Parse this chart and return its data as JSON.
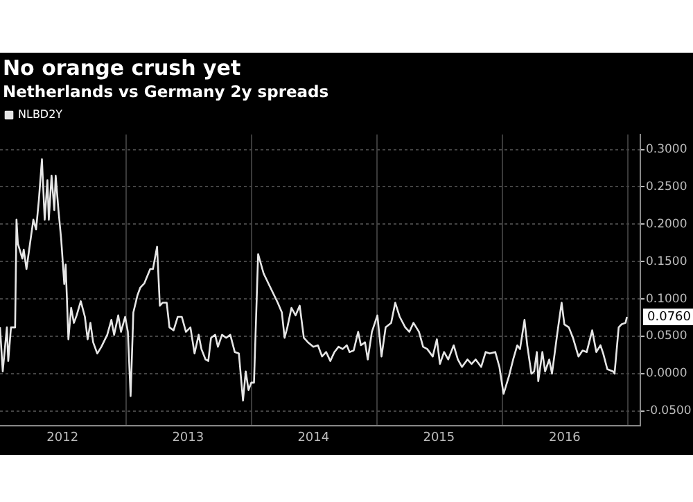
{
  "chart_data": {
    "type": "line",
    "title": "No orange crush yet",
    "subtitle": "Netherlands vs Germany 2y spreads",
    "x": [
      "2012-01-01",
      "2012-01-09",
      "2012-01-21",
      "2012-01-25",
      "2012-02-02",
      "2012-02-14",
      "2012-02-18",
      "2012-02-22",
      "2012-03-06",
      "2012-03-10",
      "2012-03-18",
      "2012-04-07",
      "2012-04-15",
      "2012-04-23",
      "2012-05-02",
      "2012-05-10",
      "2012-05-18",
      "2012-05-22",
      "2012-05-30",
      "2012-06-07",
      "2012-06-11",
      "2012-06-19",
      "2012-06-27",
      "2012-07-06",
      "2012-07-10",
      "2012-07-18",
      "2012-07-26",
      "2012-08-03",
      "2012-08-11",
      "2012-08-23",
      "2012-09-04",
      "2012-09-12",
      "2012-09-20",
      "2012-09-28",
      "2012-10-10",
      "2012-10-22",
      "2012-11-08",
      "2012-11-20",
      "2012-11-28",
      "2012-12-10",
      "2012-12-18",
      "2012-12-30",
      "2013-01-07",
      "2013-01-15",
      "2013-01-23",
      "2013-02-04",
      "2013-02-12",
      "2013-02-24",
      "2013-03-13",
      "2013-03-21",
      "2013-04-02",
      "2013-04-10",
      "2013-04-18",
      "2013-04-30",
      "2013-05-08",
      "2013-05-20",
      "2013-06-01",
      "2013-06-13",
      "2013-06-25",
      "2013-07-08",
      "2013-07-20",
      "2013-08-01",
      "2013-08-09",
      "2013-08-21",
      "2013-08-29",
      "2013-09-06",
      "2013-09-18",
      "2013-09-26",
      "2013-10-08",
      "2013-10-20",
      "2013-11-01",
      "2013-11-14",
      "2013-11-26",
      "2013-12-08",
      "2013-12-16",
      "2013-12-24",
      "2014-01-01",
      "2014-01-09",
      "2014-01-21",
      "2014-02-06",
      "2014-02-26",
      "2014-03-19",
      "2014-03-31",
      "2014-04-08",
      "2014-04-16",
      "2014-04-28",
      "2014-05-10",
      "2014-05-22",
      "2014-06-03",
      "2014-06-15",
      "2014-07-01",
      "2014-07-14",
      "2014-07-26",
      "2014-08-07",
      "2014-08-19",
      "2014-08-31",
      "2014-09-12",
      "2014-09-24",
      "2014-10-06",
      "2014-10-14",
      "2014-10-26",
      "2014-11-08",
      "2014-11-16",
      "2014-11-28",
      "2014-12-06",
      "2014-12-18",
      "2015-01-03",
      "2015-01-15",
      "2015-01-27",
      "2015-02-12",
      "2015-02-24",
      "2015-03-09",
      "2015-03-25",
      "2015-04-06",
      "2015-04-18",
      "2015-05-04",
      "2015-05-16",
      "2015-05-28",
      "2015-06-13",
      "2015-06-25",
      "2015-07-04",
      "2015-07-16",
      "2015-07-28",
      "2015-08-13",
      "2015-08-25",
      "2015-09-06",
      "2015-09-22",
      "2015-10-04",
      "2015-10-16",
      "2015-11-01",
      "2015-11-14",
      "2015-11-26",
      "2015-12-12",
      "2015-12-24",
      "2016-01-05",
      "2016-01-21",
      "2016-02-02",
      "2016-02-14",
      "2016-02-22",
      "2016-03-06",
      "2016-03-14",
      "2016-03-26",
      "2016-04-03",
      "2016-04-11",
      "2016-04-15",
      "2016-04-27",
      "2016-05-05",
      "2016-05-17",
      "2016-05-25",
      "2016-06-10",
      "2016-06-22",
      "2016-06-30",
      "2016-07-13",
      "2016-07-25",
      "2016-08-10",
      "2016-08-22",
      "2016-09-03",
      "2016-09-19",
      "2016-10-01",
      "2016-10-13",
      "2016-10-21",
      "2016-11-02",
      "2016-11-19",
      "2016-11-23",
      "2016-12-05",
      "2016-12-13",
      "2016-12-25",
      "2016-12-29"
    ],
    "series": [
      {
        "name": "NLBD2Y",
        "color": "#e6e6e6",
        "values": [
          0.062,
          0.003,
          0.062,
          0.017,
          0.062,
          0.062,
          0.206,
          0.174,
          0.154,
          0.166,
          0.14,
          0.206,
          0.193,
          0.232,
          0.287,
          0.206,
          0.259,
          0.206,
          0.265,
          0.219,
          0.265,
          0.219,
          0.18,
          0.12,
          0.146,
          0.046,
          0.088,
          0.068,
          0.078,
          0.097,
          0.076,
          0.046,
          0.068,
          0.042,
          0.027,
          0.036,
          0.052,
          0.072,
          0.052,
          0.078,
          0.056,
          0.076,
          0.056,
          -0.03,
          0.082,
          0.105,
          0.115,
          0.121,
          0.14,
          0.14,
          0.17,
          0.091,
          0.095,
          0.095,
          0.062,
          0.058,
          0.076,
          0.076,
          0.056,
          0.062,
          0.027,
          0.052,
          0.033,
          0.019,
          0.017,
          0.048,
          0.052,
          0.036,
          0.052,
          0.048,
          0.052,
          0.029,
          0.027,
          -0.036,
          0.003,
          -0.022,
          -0.012,
          -0.012,
          0.16,
          0.134,
          0.115,
          0.095,
          0.082,
          0.048,
          0.062,
          0.088,
          0.078,
          0.091,
          0.048,
          0.042,
          0.036,
          0.038,
          0.023,
          0.029,
          0.017,
          0.029,
          0.036,
          0.033,
          0.038,
          0.029,
          0.031,
          0.056,
          0.038,
          0.042,
          0.019,
          0.056,
          0.078,
          0.023,
          0.062,
          0.068,
          0.095,
          0.076,
          0.062,
          0.056,
          0.068,
          0.056,
          0.036,
          0.033,
          0.023,
          0.046,
          0.013,
          0.029,
          0.019,
          0.038,
          0.019,
          0.009,
          0.019,
          0.013,
          0.019,
          0.009,
          0.029,
          0.027,
          0.029,
          0.009,
          -0.027,
          -0.003,
          0.019,
          0.038,
          0.033,
          0.072,
          0.038,
          0.0,
          0.003,
          0.029,
          -0.01,
          0.029,
          0.003,
          0.019,
          0.0,
          0.056,
          0.095,
          0.066,
          0.062,
          0.048,
          0.023,
          0.031,
          0.029,
          0.058,
          0.029,
          0.038,
          0.027,
          0.006,
          0.003,
          0.0,
          0.062,
          0.066,
          0.068,
          0.076
        ]
      }
    ],
    "xlim": [
      "2012-01-01",
      "2017-02-06"
    ],
    "xticks": [
      {
        "value": "2012-07-01",
        "label": "2012"
      },
      {
        "value": "2013-01-01",
        "label": null
      },
      {
        "value": "2013-07-01",
        "label": "2013"
      },
      {
        "value": "2014-01-01",
        "label": null
      },
      {
        "value": "2014-07-01",
        "label": "2014"
      },
      {
        "value": "2015-01-01",
        "label": null
      },
      {
        "value": "2015-07-01",
        "label": "2015"
      },
      {
        "value": "2016-01-01",
        "label": null
      },
      {
        "value": "2016-07-01",
        "label": "2016"
      },
      {
        "value": "2017-01-01",
        "label": null
      }
    ],
    "ylim": [
      -0.07,
      0.32
    ],
    "yticks": [
      {
        "value": -0.05,
        "label": "-0.0500"
      },
      {
        "value": 0,
        "label": "0.0000"
      },
      {
        "value": 0.05,
        "label": "0.0500"
      },
      {
        "value": 0.1,
        "label": "0.1000"
      },
      {
        "value": 0.15,
        "label": "0.1500"
      },
      {
        "value": 0.2,
        "label": "0.2000"
      },
      {
        "value": 0.25,
        "label": "0.2500"
      },
      {
        "value": 0.3,
        "label": "0.3000"
      }
    ],
    "annotations": [
      {
        "text": "0.0760",
        "x": "2016-12-29",
        "y": 0.076
      }
    ],
    "grid": true,
    "legend": "top left",
    "marker": "none",
    "line_style": "solid"
  }
}
